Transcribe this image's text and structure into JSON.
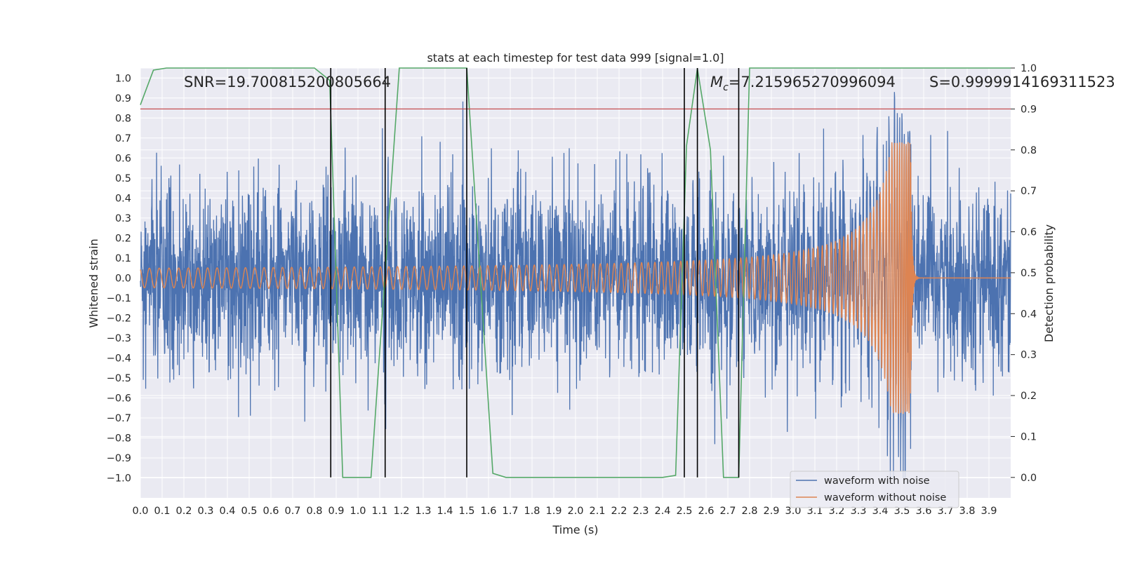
{
  "chart_data": {
    "type": "line",
    "title": "stats at each timestep for test data 999 [signal=1.0]",
    "xlabel": "Time (s)",
    "ylabel_left": "Whitened strain",
    "ylabel_right": "Detection probability",
    "xlim": [
      0.0,
      4.0
    ],
    "ylim_left": [
      -1.1,
      1.05
    ],
    "ylim_right": [
      -0.05,
      1.0
    ],
    "x_ticks": [
      "0.0",
      "0.1",
      "0.2",
      "0.3",
      "0.4",
      "0.5",
      "0.6",
      "0.7",
      "0.8",
      "0.9",
      "1.0",
      "1.1",
      "1.2",
      "1.3",
      "1.4",
      "1.5",
      "1.6",
      "1.7",
      "1.8",
      "1.9",
      "2.0",
      "2.1",
      "2.2",
      "2.3",
      "2.4",
      "2.5",
      "2.6",
      "2.7",
      "2.8",
      "2.9",
      "3.0",
      "3.1",
      "3.2",
      "3.3",
      "3.4",
      "3.5",
      "3.6",
      "3.7",
      "3.8",
      "3.9"
    ],
    "y_ticks_left": [
      "1.0",
      "0.9",
      "0.8",
      "0.7",
      "0.6",
      "0.5",
      "0.4",
      "0.3",
      "0.2",
      "0.1",
      "0.0",
      "−0.1",
      "−0.2",
      "−0.3",
      "−0.4",
      "−0.5",
      "−0.6",
      "−0.7",
      "−0.8",
      "−0.9",
      "−1.0"
    ],
    "y_ticks_right": [
      "1.0",
      "0.9",
      "0.8",
      "0.7",
      "0.6",
      "0.5",
      "0.4",
      "0.3",
      "0.2",
      "0.1",
      "0.0"
    ],
    "threshold": 0.9,
    "threshold_color": "#c44e52",
    "event_lines_x": [
      0.875,
      1.125,
      1.5,
      2.5,
      2.56,
      2.75
    ],
    "series": [
      {
        "name": "waveform with noise",
        "color": "#4c72b0",
        "axis": "left",
        "noise_sigma": 0.22,
        "seed": 999
      },
      {
        "name": "waveform without noise",
        "color": "#dd8452",
        "axis": "left",
        "merger_time": 3.54,
        "base_amplitude": 0.045,
        "peak_amplitude": 0.68,
        "start_frequency": 22
      },
      {
        "name": "detection probability",
        "color": "#55a868",
        "axis": "right",
        "legend": false,
        "x": [
          0.0,
          0.06,
          0.12,
          0.8,
          0.87,
          0.93,
          1.06,
          1.19,
          1.5,
          1.62,
          1.68,
          2.4,
          2.46,
          2.51,
          2.56,
          2.62,
          2.68,
          2.75,
          2.8,
          3.9,
          4.0
        ],
        "y": [
          0.91,
          0.995,
          1.0,
          1.0,
          0.97,
          0.0,
          0.0,
          1.0,
          1.0,
          0.01,
          0.0,
          0.0,
          0.005,
          0.81,
          0.999,
          0.8,
          0.0,
          0.0,
          1.0,
          1.0,
          1.0
        ]
      }
    ],
    "annotations": {
      "snr": "SNR=19.700815200805664",
      "mc_symbol": "M",
      "mc_subscript": "c",
      "mc_value": "=7.215965270996094",
      "s": "S=0.9999914169311523"
    },
    "legend_position": "lower right",
    "grid": true
  }
}
